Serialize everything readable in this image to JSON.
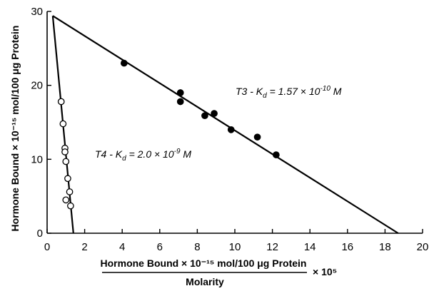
{
  "chart_data": {
    "type": "scatter",
    "xlim": [
      0,
      20
    ],
    "ylim": [
      0,
      30
    ],
    "grid": false,
    "x_ticks": [
      0,
      2,
      4,
      6,
      8,
      10,
      12,
      14,
      16,
      18,
      20
    ],
    "y_ticks": [
      0,
      10,
      20,
      30
    ],
    "ylabel": "Hormone Bound × 10⁻¹⁵ mol/100 μg Protein",
    "xlabel": {
      "numerator": "Hormone Bound × 10⁻¹⁵ mol/100 μg Protein",
      "denominator": "Molarity",
      "multiplier": "× 10⁵"
    },
    "series": [
      {
        "name": "T3",
        "marker": "filled-circle",
        "points": [
          [
            4.1,
            23.0
          ],
          [
            7.1,
            19.0
          ],
          [
            7.1,
            17.8
          ],
          [
            8.4,
            15.9
          ],
          [
            8.9,
            16.2
          ],
          [
            9.8,
            14.0
          ],
          [
            11.2,
            13.0
          ],
          [
            12.2,
            10.6
          ]
        ],
        "fit_line": [
          [
            0.3,
            29.4
          ],
          [
            18.7,
            0
          ]
        ],
        "annotation": {
          "prefix": "T3 - K",
          "sub": "d",
          "mid": " = 1.57 × 10",
          "exp": "-10",
          "suffix": " M"
        }
      },
      {
        "name": "T4",
        "marker": "open-circle",
        "points": [
          [
            0.75,
            17.8
          ],
          [
            0.85,
            14.8
          ],
          [
            0.95,
            11.5
          ],
          [
            0.95,
            11.0
          ],
          [
            1.0,
            9.7
          ],
          [
            1.1,
            7.4
          ],
          [
            1.2,
            5.6
          ],
          [
            1.0,
            4.5
          ],
          [
            1.25,
            3.7
          ]
        ],
        "fit_line": [
          [
            0.3,
            29.4
          ],
          [
            1.4,
            0
          ]
        ],
        "annotation": {
          "prefix": "T4 - K",
          "sub": "d",
          "mid": " = 2.0 × 10",
          "exp": "-9",
          "suffix": " M"
        }
      }
    ]
  }
}
